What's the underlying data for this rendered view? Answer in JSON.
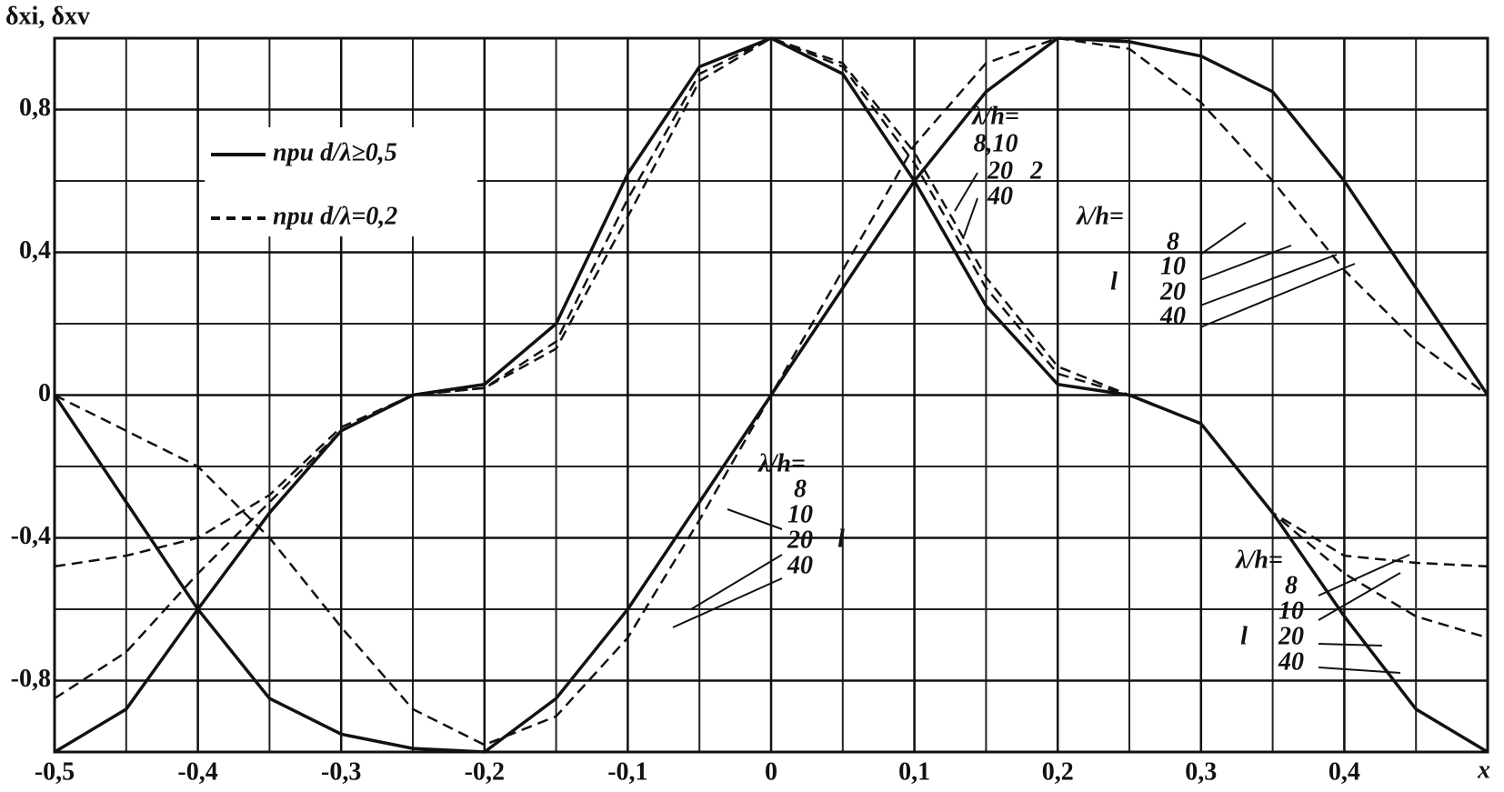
{
  "chart_data": {
    "type": "line",
    "y_label": "δxi, δxv",
    "x_label": "x",
    "x": [
      -0.5,
      -0.45,
      -0.4,
      -0.35,
      -0.3,
      -0.25,
      -0.2,
      -0.15,
      -0.1,
      -0.05,
      0,
      0.05,
      0.1,
      0.15,
      0.2,
      0.25,
      0.3,
      0.35,
      0.4,
      0.45,
      0.5
    ],
    "legend": [
      {
        "label": "при d/λ≥0,5",
        "dashed": false
      },
      {
        "label": "при d/λ=0,2",
        "dashed": true
      }
    ],
    "series": [
      {
        "dashed": false,
        "color": "#111111",
        "values": [
          -1,
          -0.88,
          -0.6,
          -0.33,
          -0.1,
          0,
          0.03,
          0.2,
          0.62,
          0.92,
          1,
          0.9,
          0.6,
          0.25,
          0.03,
          0,
          -0.08,
          -0.33,
          -0.62,
          -0.88,
          -1
        ]
      },
      {
        "dashed": true,
        "color": "#111111",
        "values": [
          -0.85,
          -0.72,
          -0.5,
          -0.3,
          -0.1,
          0,
          0.02,
          0.15,
          0.55,
          0.9,
          1,
          0.92,
          0.65,
          0.3,
          0.06,
          0,
          -0.08,
          -0.33,
          -0.5,
          -0.62,
          -0.68
        ]
      },
      {
        "dashed": true,
        "color": "#111111",
        "values": [
          -0.48,
          -0.45,
          -0.4,
          -0.28,
          -0.09,
          0,
          0.02,
          0.13,
          0.5,
          0.88,
          1,
          0.93,
          0.68,
          0.33,
          0.08,
          0,
          -0.08,
          -0.33,
          -0.45,
          -0.47,
          -0.48
        ]
      },
      {
        "dashed": false,
        "color": "#111111",
        "values": [
          0,
          -0.3,
          -0.6,
          -0.85,
          -0.95,
          -0.99,
          -1,
          -0.85,
          -0.6,
          -0.3,
          0,
          0.3,
          0.6,
          0.85,
          1,
          0.99,
          0.95,
          0.85,
          0.6,
          0.3,
          0
        ]
      },
      {
        "dashed": true,
        "color": "#111111",
        "values": [
          0,
          -0.1,
          -0.2,
          -0.4,
          -0.65,
          -0.88,
          -0.98,
          -0.9,
          -0.68,
          -0.35,
          0,
          0.35,
          0.7,
          0.93,
          1,
          0.97,
          0.82,
          0.6,
          0.35,
          0.15,
          0
        ]
      }
    ],
    "annotations": [
      "λ/h=",
      "8,10",
      "20",
      "40",
      "2",
      "λ/h=",
      "8",
      "10",
      "20",
      "40",
      "l",
      "λ/h=",
      "8",
      "10",
      "20",
      "40",
      "l",
      "λ/h=",
      "8",
      "10",
      "20",
      "40",
      "l"
    ],
    "xlim": [
      -0.5,
      0.5
    ],
    "ylim": [
      -1,
      1
    ],
    "xticks": [
      {
        "value": -0.5,
        "label": "-0,5"
      },
      {
        "value": -0.4,
        "label": "-0,4"
      },
      {
        "value": -0.3,
        "label": "-0,3"
      },
      {
        "value": -0.2,
        "label": "-0,2"
      },
      {
        "value": -0.1,
        "label": "-0,1"
      },
      0,
      {
        "value": 0.1,
        "label": "0,1"
      },
      {
        "value": 0.2,
        "label": "0,2"
      },
      {
        "value": 0.3,
        "label": "0,3"
      },
      {
        "value": 0.4,
        "label": "0,4"
      }
    ],
    "yticks": [
      {
        "value": -0.8,
        "label": "-0,8"
      },
      {
        "value": -0.4,
        "label": "-0,4"
      },
      0,
      {
        "value": 0.4,
        "label": "0,4"
      },
      {
        "value": 0.8,
        "label": "0,8"
      }
    ],
    "grid": true
  }
}
